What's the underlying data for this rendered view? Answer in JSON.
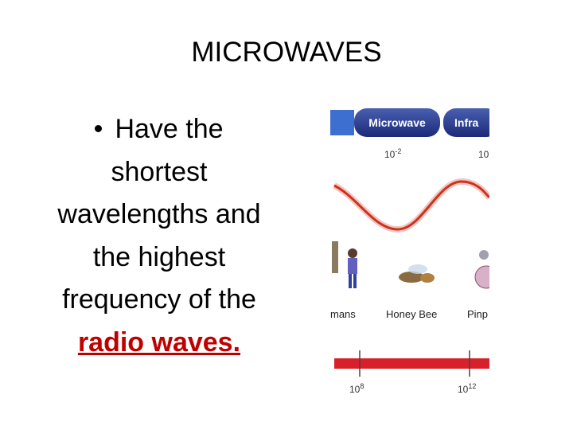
{
  "title": "MICROWAVES",
  "bullet": {
    "lines": [
      "Have the",
      "shortest",
      "wavelengths and",
      "the highest",
      "frequency of the"
    ],
    "link": "radio waves."
  },
  "figure": {
    "bands": [
      "Microwave",
      "Infra"
    ],
    "wavelengths": [
      {
        "base": "10",
        "exp": "-2"
      },
      {
        "base": "10",
        "exp": ""
      }
    ],
    "objects": [
      "mans",
      "Honey Bee",
      "Pinp"
    ],
    "frequencies": [
      {
        "base": "10",
        "exp": "8"
      },
      {
        "base": "10",
        "exp": "12"
      }
    ]
  }
}
